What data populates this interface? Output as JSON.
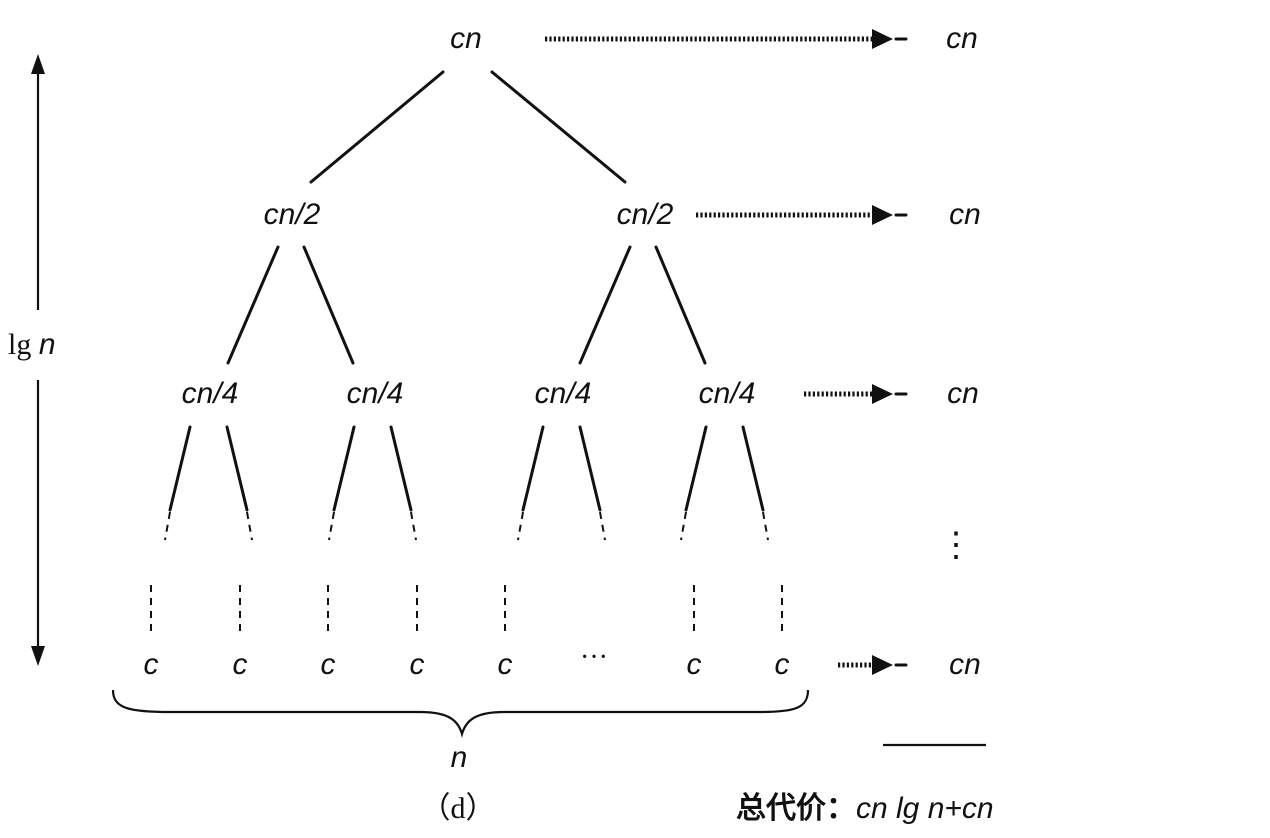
{
  "figure": {
    "caption": "（d）",
    "total_label": "总代价：",
    "total_value": "cn lg n+cn",
    "height_label_prefix": "lg ",
    "height_label_var": "n",
    "width_label": "n",
    "ellipsis_row": "···",
    "vertical_ellipsis": "⋮"
  },
  "tree": {
    "root": "cn",
    "level1": [
      "cn/2",
      "cn/2"
    ],
    "level2": [
      "cn/4",
      "cn/4",
      "cn/4",
      "cn/4"
    ],
    "leaves": [
      "c",
      "c",
      "c",
      "c",
      "c",
      "c",
      "c"
    ]
  },
  "level_costs": [
    "cn",
    "cn",
    "cn",
    "cn"
  ]
}
